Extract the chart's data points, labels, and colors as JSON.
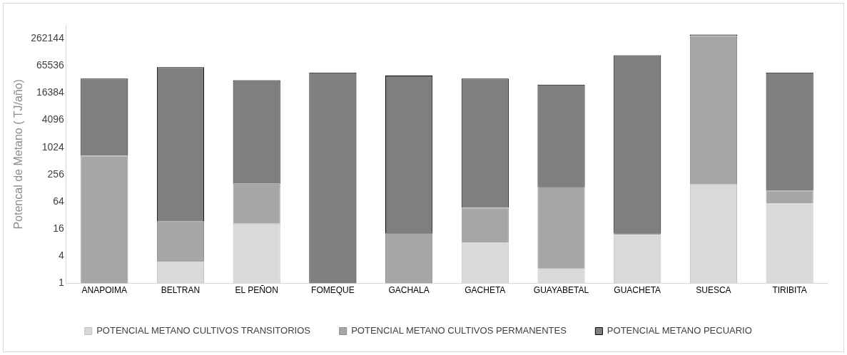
{
  "chart_data": {
    "type": "bar",
    "stacked": true,
    "log": "y",
    "ylabel": "Potencal de Metano ( TJ/año)",
    "categories": [
      "ANAPOIMA",
      "BELTRAN",
      "EL PEÑON",
      "FOMEQUE",
      "GACHALA",
      "GACHETA",
      "GUAYABETAL",
      "GUACHETA",
      "SUESCA",
      "TIRIBITA"
    ],
    "series": [
      {
        "name": "POTENCIAL METANO CULTIVOS TRANSITORIOS",
        "color": "#d9d9d9",
        "values": [
          null,
          3,
          21,
          null,
          1,
          8,
          2.2,
          12,
          155,
          59
        ]
      },
      {
        "name": "POTENCIAL METANO CULTIVOS PERMANENTES",
        "color": "#a6a6a6",
        "values": [
          670,
          20.5,
          140,
          null,
          12,
          39,
          136,
          1,
          300000,
          55
        ]
      },
      {
        "name": "POTENCIAL METANO PECUARIO",
        "color": "#7f7f7f",
        "values": [
          33300,
          60900,
          31300,
          46300,
          39800,
          34000,
          24900,
          112000,
          20000,
          46100
        ]
      }
    ],
    "ylim": [
      1,
      524288
    ],
    "yticks": [
      1,
      4,
      16,
      64,
      256,
      1024,
      4096,
      16384,
      65536,
      262144
    ],
    "grid": false,
    "legend": "bottom"
  }
}
